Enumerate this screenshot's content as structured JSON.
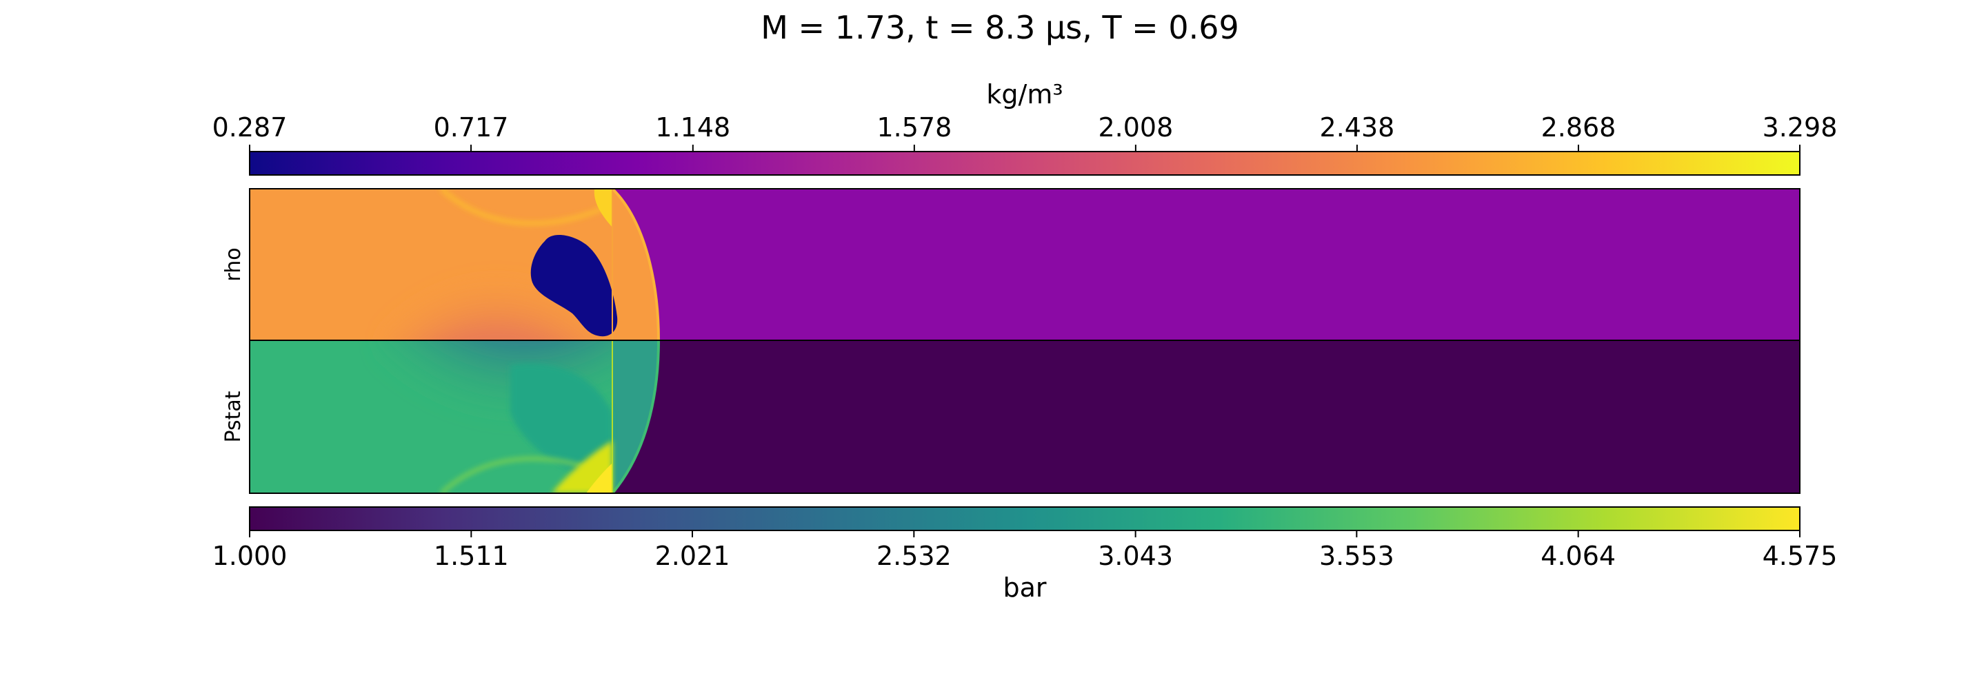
{
  "chart_data": {
    "type": "heatmap",
    "title": "M = 1.73, t = 8.3 μs, T = 0.69",
    "panels": [
      {
        "name": "rho",
        "ylabel": "rho",
        "colormap": "plasma",
        "background_value": 1.02,
        "colorbar": {
          "label": "kg/m³",
          "range": [
            0.287,
            3.298
          ],
          "ticks": [
            "0.287",
            "0.717",
            "1.148",
            "1.578",
            "2.008",
            "2.438",
            "2.868",
            "3.298"
          ],
          "position": "top"
        },
        "colors": {
          "post_shock": "#f89b40",
          "pre_shock": "#8b0aa5",
          "bubble": "#0d0887",
          "reflected_region": "#e1675d",
          "bright_edge": "#fcd225"
        }
      },
      {
        "name": "Pstat",
        "ylabel": "Pstat",
        "colormap": "viridis",
        "background_value": 1.0,
        "colorbar": {
          "label": "bar",
          "range": [
            1.0,
            4.575
          ],
          "ticks": [
            "1.000",
            "1.511",
            "2.021",
            "2.532",
            "3.043",
            "3.553",
            "4.064",
            "4.575"
          ],
          "position": "bottom"
        },
        "colors": {
          "post_shock": "#34b679",
          "pre_shock": "#440154",
          "reflected_region": "#2e7b8e",
          "mid_region": "#22a785",
          "bright_edge": "#fde725"
        }
      }
    ]
  }
}
